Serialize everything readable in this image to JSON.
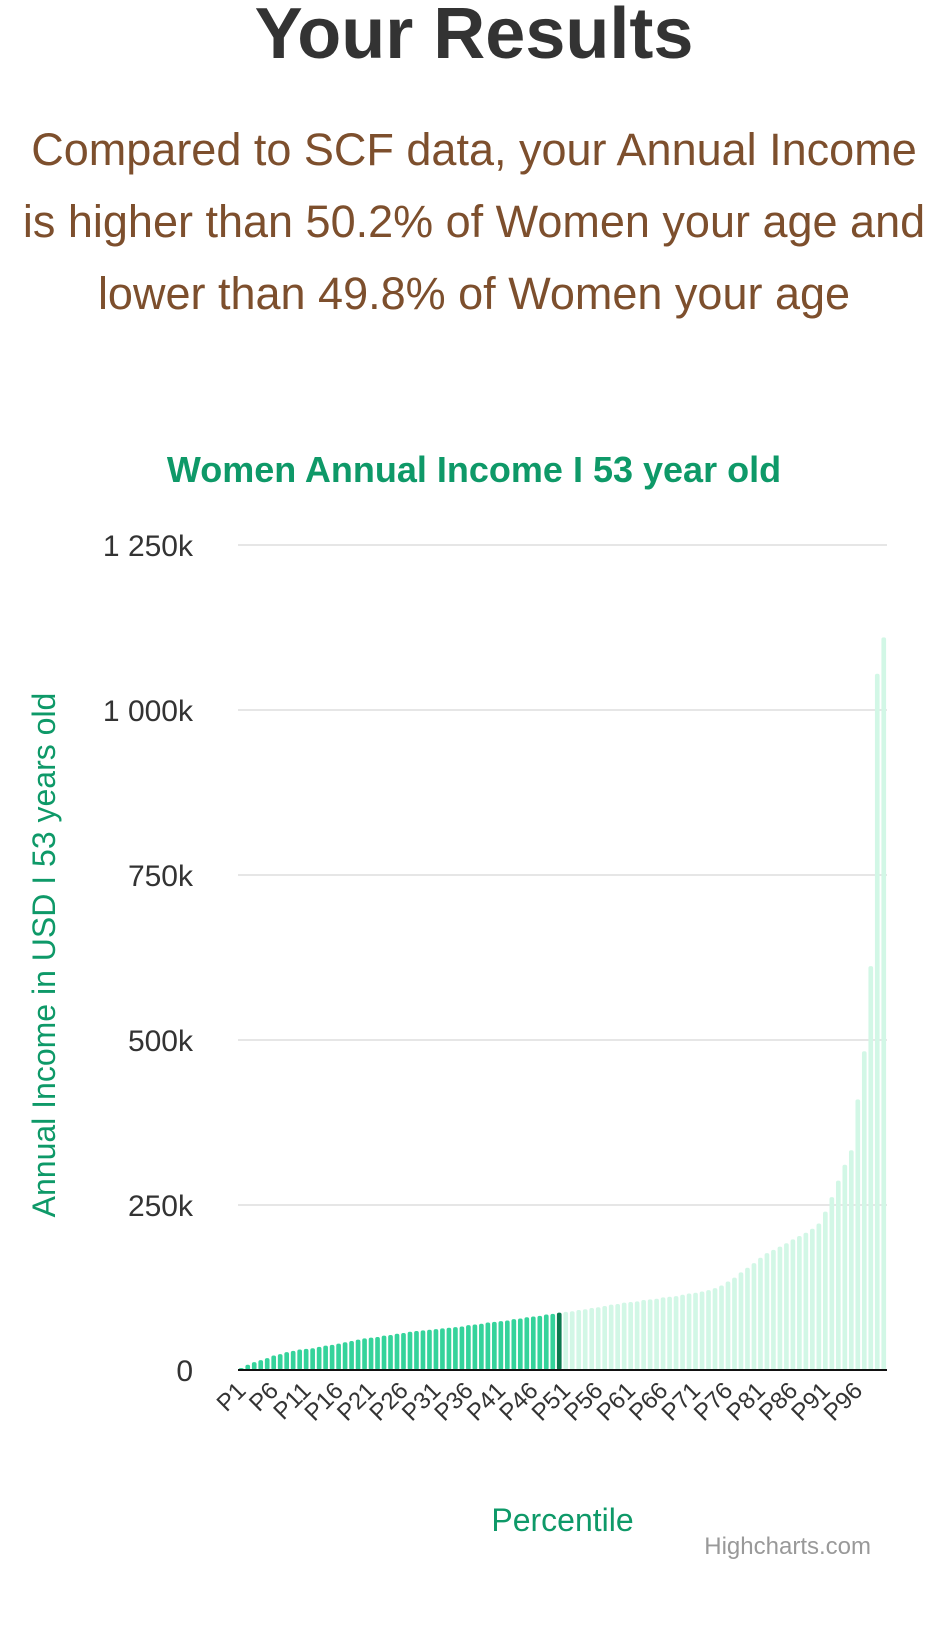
{
  "page": {
    "title": "Your Results",
    "summary": "Compared to SCF data, your Annual Income is higher than 50.2% of Women your age and lower than 49.8% of Women your age"
  },
  "colors": {
    "title": "#333333",
    "summary": "#7d4f2d",
    "accent": "#0e9968",
    "bar_below": "#35d39b",
    "bar_user": "#0b7a4f",
    "bar_above": "#d2f7e6",
    "grid": "#e6e6e6",
    "axis_line": "#111111",
    "credits": "#999999"
  },
  "chart_data": {
    "type": "bar",
    "title": "Women Annual Income I 53 year old",
    "xlabel": "Percentile",
    "ylabel": "Annual Income in USD I 53 years old",
    "credits": "Highcharts.com",
    "ylim": [
      0,
      1250000
    ],
    "yticks": [
      0,
      250000,
      500000,
      750000,
      1000000,
      1250000
    ],
    "ytick_labels": [
      "0",
      "250k",
      "500k",
      "750k",
      "1 000k",
      "1 250k"
    ],
    "grid": true,
    "legend": "none",
    "highlight_percentile": "P50",
    "categories": [
      "P1",
      "P2",
      "P3",
      "P4",
      "P5",
      "P6",
      "P7",
      "P8",
      "P9",
      "P10",
      "P11",
      "P12",
      "P13",
      "P14",
      "P15",
      "P16",
      "P17",
      "P18",
      "P19",
      "P20",
      "P21",
      "P22",
      "P23",
      "P24",
      "P25",
      "P26",
      "P27",
      "P28",
      "P29",
      "P30",
      "P31",
      "P32",
      "P33",
      "P34",
      "P35",
      "P36",
      "P37",
      "P38",
      "P39",
      "P40",
      "P41",
      "P42",
      "P43",
      "P44",
      "P45",
      "P46",
      "P47",
      "P48",
      "P49",
      "P50",
      "P51",
      "P52",
      "P53",
      "P54",
      "P55",
      "P56",
      "P57",
      "P58",
      "P59",
      "P60",
      "P61",
      "P62",
      "P63",
      "P64",
      "P65",
      "P66",
      "P67",
      "P68",
      "P69",
      "P70",
      "P71",
      "P72",
      "P73",
      "P74",
      "P75",
      "P76",
      "P77",
      "P78",
      "P79",
      "P80",
      "P81",
      "P82",
      "P83",
      "P84",
      "P85",
      "P86",
      "P87",
      "P88",
      "P89",
      "P90",
      "P91",
      "P92",
      "P93",
      "P94",
      "P95",
      "P96",
      "P97",
      "P98",
      "P99",
      "P100"
    ],
    "visible_tick_labels": [
      "P1",
      "P6",
      "P11",
      "P16",
      "P21",
      "P26",
      "P31",
      "P36",
      "P41",
      "P46",
      "P51",
      "P56",
      "P61",
      "P66",
      "P71",
      "P76",
      "P81",
      "P86",
      "P91",
      "P96"
    ],
    "values": [
      3000,
      8000,
      12000,
      15000,
      18000,
      22000,
      24000,
      27000,
      29000,
      31000,
      32000,
      33000,
      35000,
      37000,
      38000,
      40000,
      42000,
      44000,
      46000,
      48000,
      49000,
      50000,
      52000,
      53000,
      55000,
      56000,
      58000,
      59000,
      60000,
      61000,
      62000,
      63000,
      64000,
      65000,
      66000,
      68000,
      69000,
      70000,
      72000,
      73000,
      74000,
      75000,
      77000,
      78000,
      80000,
      81000,
      82000,
      84000,
      85000,
      87000,
      88000,
      89000,
      91000,
      92000,
      94000,
      95000,
      97000,
      99000,
      100000,
      102000,
      103000,
      104000,
      106000,
      107000,
      108000,
      110000,
      111000,
      112000,
      114000,
      116000,
      117000,
      119000,
      121000,
      124000,
      128000,
      134000,
      140000,
      148000,
      155000,
      162000,
      170000,
      177000,
      182000,
      187000,
      192000,
      198000,
      203000,
      208000,
      214000,
      222000,
      240000,
      262000,
      287000,
      311000,
      333000,
      410000,
      483000,
      612000,
      1055000,
      1110000
    ]
  }
}
